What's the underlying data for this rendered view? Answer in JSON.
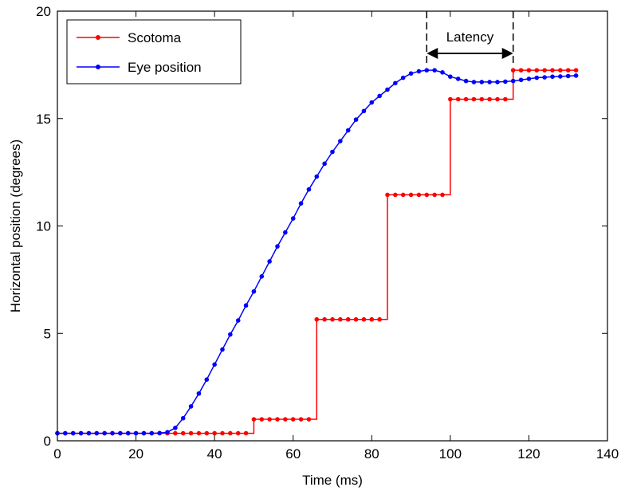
{
  "chart_data": {
    "type": "line",
    "xlabel": "Time (ms)",
    "ylabel": "Horizontal position (degrees)",
    "xlim": [
      0,
      140
    ],
    "ylim": [
      0,
      20
    ],
    "xticks": [
      0,
      20,
      40,
      60,
      80,
      100,
      120,
      140
    ],
    "yticks": [
      0,
      5,
      10,
      15,
      20
    ],
    "grid": false,
    "legend_position": "top-left",
    "annotation": {
      "label": "Latency",
      "x_start": 94,
      "x_end": 116
    },
    "series": [
      {
        "name": "Scotoma",
        "color": "#ff0000",
        "marker": "dot",
        "x": [
          0,
          2,
          4,
          6,
          8,
          10,
          12,
          14,
          16,
          18,
          20,
          22,
          24,
          26,
          28,
          30,
          32,
          34,
          36,
          38,
          40,
          42,
          44,
          46,
          48,
          50,
          52,
          54,
          56,
          58,
          60,
          62,
          64,
          66,
          68,
          70,
          72,
          74,
          76,
          78,
          80,
          82,
          84,
          86,
          88,
          90,
          92,
          94,
          96,
          98,
          100,
          102,
          104,
          106,
          108,
          110,
          112,
          114,
          116,
          118,
          120,
          122,
          124,
          126,
          128,
          130,
          132
        ],
        "y": [
          0.35,
          0.35,
          0.35,
          0.35,
          0.35,
          0.35,
          0.35,
          0.35,
          0.35,
          0.35,
          0.35,
          0.35,
          0.35,
          0.35,
          0.35,
          0.35,
          0.35,
          0.35,
          0.35,
          0.35,
          0.35,
          0.35,
          0.35,
          0.35,
          0.35,
          1.0,
          1.0,
          1.0,
          1.0,
          1.0,
          1.0,
          1.0,
          1.0,
          5.65,
          5.65,
          5.65,
          5.65,
          5.65,
          5.65,
          5.65,
          5.65,
          5.65,
          11.45,
          11.45,
          11.45,
          11.45,
          11.45,
          11.45,
          11.45,
          11.45,
          15.9,
          15.9,
          15.9,
          15.9,
          15.9,
          15.9,
          15.9,
          15.9,
          17.25,
          17.25,
          17.25,
          17.25,
          17.25,
          17.25,
          17.25,
          17.25,
          17.25
        ]
      },
      {
        "name": "Eye position",
        "color": "#0000ff",
        "marker": "dot",
        "x": [
          0,
          2,
          4,
          6,
          8,
          10,
          12,
          14,
          16,
          18,
          20,
          22,
          24,
          26,
          28,
          30,
          32,
          34,
          36,
          38,
          40,
          42,
          44,
          46,
          48,
          50,
          52,
          54,
          56,
          58,
          60,
          62,
          64,
          66,
          68,
          70,
          72,
          74,
          76,
          78,
          80,
          82,
          84,
          86,
          88,
          90,
          92,
          94,
          96,
          98,
          100,
          102,
          104,
          106,
          108,
          110,
          112,
          114,
          116,
          118,
          120,
          122,
          124,
          126,
          128,
          130,
          132
        ],
        "y": [
          0.35,
          0.35,
          0.35,
          0.35,
          0.35,
          0.35,
          0.35,
          0.35,
          0.35,
          0.35,
          0.35,
          0.35,
          0.35,
          0.36,
          0.4,
          0.6,
          1.05,
          1.6,
          2.2,
          2.85,
          3.55,
          4.25,
          4.95,
          5.6,
          6.3,
          6.95,
          7.65,
          8.35,
          9.05,
          9.7,
          10.35,
          11.05,
          11.7,
          12.3,
          12.9,
          13.45,
          13.95,
          14.45,
          14.95,
          15.35,
          15.75,
          16.05,
          16.35,
          16.65,
          16.9,
          17.1,
          17.2,
          17.25,
          17.25,
          17.15,
          16.95,
          16.85,
          16.75,
          16.7,
          16.7,
          16.7,
          16.7,
          16.72,
          16.75,
          16.8,
          16.85,
          16.9,
          16.92,
          16.95,
          16.96,
          16.98,
          17.0
        ]
      }
    ]
  }
}
